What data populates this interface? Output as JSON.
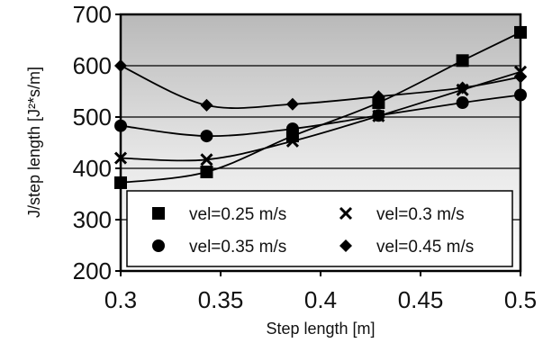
{
  "chart_data": {
    "type": "line",
    "title": "",
    "xlabel": "Step length [m]",
    "ylabel": "J/step length [J²*s/m]",
    "xlim": [
      0.3,
      0.5
    ],
    "ylim": [
      200,
      700
    ],
    "xticks": [
      "0.3",
      "0.35",
      "0.4",
      "0.45",
      "0.5"
    ],
    "xtick_values": [
      0.3,
      0.35,
      0.4,
      0.45,
      0.5
    ],
    "yticks": [
      "200",
      "300",
      "400",
      "500",
      "600",
      "700"
    ],
    "ytick_values": [
      200,
      300,
      400,
      500,
      600,
      700
    ],
    "grid": "horizontal",
    "background": "gradient gray (darker at top)",
    "legend_placement": "lower-right",
    "series": [
      {
        "name": "vel=0.25 m/s",
        "marker": "square",
        "x": [
          0.3,
          0.343,
          0.386,
          0.429,
          0.471,
          0.5
        ],
        "y": [
          372,
          393,
          463,
          528,
          610,
          665
        ]
      },
      {
        "name": "vel=0.3 m/s",
        "marker": "x",
        "x": [
          0.3,
          0.343,
          0.386,
          0.429,
          0.471,
          0.5
        ],
        "y": [
          420,
          417,
          453,
          502,
          553,
          588
        ]
      },
      {
        "name": "vel=0.35 m/s",
        "marker": "circle",
        "x": [
          0.3,
          0.343,
          0.386,
          0.429,
          0.471,
          0.5
        ],
        "y": [
          483,
          463,
          477,
          503,
          528,
          543
        ]
      },
      {
        "name": "vel=0.45 m/s",
        "marker": "diamond",
        "x": [
          0.3,
          0.343,
          0.386,
          0.429,
          0.471,
          0.5
        ],
        "y": [
          600,
          523,
          525,
          540,
          557,
          578
        ]
      }
    ]
  }
}
